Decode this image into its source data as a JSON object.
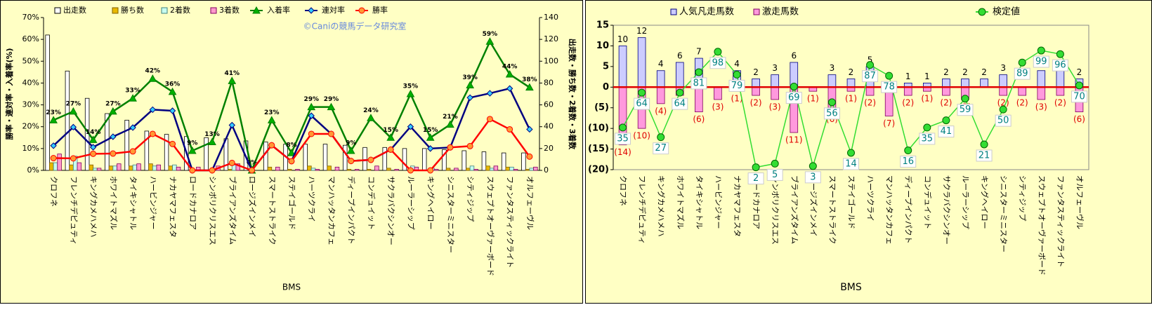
{
  "chart_data": [
    {
      "type": "combo",
      "title": "©Caniの競馬データ研究室",
      "xlabel": "BMS",
      "ylabel": "勝率・連対率・入着率(%)",
      "y2label": "出走数・勝ち数・2着数・3着数",
      "categories": [
        "クロフネ",
        "フレンチデピュティ",
        "キングカメハメハ",
        "ホワイトマズル",
        "タイキシャトル",
        "ハービンジャー",
        "ナカヤマフェスタ",
        "ロードカナロア",
        "シンボリクリスエス",
        "ブライアンズタイム",
        "ロージズインメイ",
        "スマートストライク",
        "ステイゴールド",
        "ハーツクライ",
        "マンハッタンカフェ",
        "ディープインパクト",
        "コンデュイット",
        "サクラバクシンオー",
        "ルーラーシップ",
        "キングヘイロー",
        "シニスターミニスター",
        "シティジップ",
        "スウェプトオーヴァーボード",
        "ファンタスティックライト",
        "オルフェーヴル"
      ],
      "ylim": [
        0,
        70
      ],
      "yticks": [
        {
          "value": 0,
          "label": "0%"
        },
        {
          "value": 10,
          "label": "10%"
        },
        {
          "value": 20,
          "label": "20%"
        },
        {
          "value": 30,
          "label": "30%"
        },
        {
          "value": 40,
          "label": "40%"
        },
        {
          "value": 50,
          "label": "50%"
        },
        {
          "value": 60,
          "label": "60%"
        },
        {
          "value": 70,
          "label": "70%"
        }
      ],
      "y2lim": [
        0,
        140
      ],
      "y2ticks": [
        0,
        20,
        40,
        60,
        80,
        100,
        120,
        140
      ],
      "bar_mode": "group",
      "background": "#ffffc4",
      "series": [
        {
          "name": "出走数",
          "kind": "bar",
          "axis": "y2",
          "color": "#ffffff",
          "stroke": "#000000",
          "values": [
            124,
            91,
            66,
            52,
            46,
            36,
            33,
            31,
            30,
            29,
            27,
            26,
            24,
            24,
            24,
            23,
            21,
            21,
            20,
            20,
            19,
            18,
            17,
            16,
            16
          ]
        },
        {
          "name": "勝ち数",
          "kind": "bar",
          "axis": "y2",
          "color": "#e8b800",
          "stroke": "#806000",
          "values": [
            7,
            5,
            5,
            4,
            4,
            6,
            4,
            0,
            0,
            1,
            0,
            3,
            1,
            4,
            4,
            1,
            1,
            2,
            0,
            0,
            2,
            2,
            4,
            3,
            1
          ]
        },
        {
          "name": "2着数",
          "kind": "bar",
          "axis": "y2",
          "color": "#c8fff0",
          "stroke": "#408080",
          "values": [
            7,
            13,
            2,
            4,
            5,
            4,
            5,
            0,
            0,
            5,
            0,
            0,
            0,
            2,
            0,
            0,
            0,
            0,
            4,
            2,
            0,
            4,
            2,
            3,
            2
          ]
        },
        {
          "name": "3着数",
          "kind": "bar",
          "axis": "y2",
          "color": "#ff99cc",
          "stroke": "#800060",
          "values": [
            15,
            7,
            2,
            6,
            6,
            5,
            3,
            3,
            4,
            6,
            0,
            3,
            1,
            1,
            3,
            1,
            4,
            1,
            3,
            1,
            2,
            1,
            4,
            1,
            3
          ]
        },
        {
          "name": "入着率",
          "kind": "line",
          "axis": "y",
          "color": "#008000",
          "marker": "triangle",
          "marker_fill": "#00b000",
          "labels": true,
          "values": [
            23,
            27,
            14,
            27,
            33,
            42,
            36,
            9,
            13,
            41,
            0,
            23,
            8,
            29,
            29,
            9,
            24,
            15,
            35,
            15,
            21,
            39,
            59,
            44,
            38
          ],
          "value_labels": [
            "23%",
            "27%",
            "14%",
            "27%",
            "33%",
            "42%",
            "36%",
            "9%",
            "13%",
            "41%",
            "0%",
            "23%",
            "8%",
            "29%",
            "29%",
            "9%",
            "24%",
            "15%",
            "35%",
            "15%",
            "21%",
            "39%",
            "59%",
            "44%",
            "38%"
          ]
        },
        {
          "name": "連対率",
          "kind": "line",
          "axis": "y",
          "color": "#000080",
          "marker": "diamond",
          "marker_fill": "#33ccff",
          "values": [
            11.3,
            19.8,
            10.6,
            15.4,
            19.6,
            27.8,
            27.3,
            0,
            0,
            20.7,
            0,
            11.5,
            4.2,
            25,
            16.7,
            4.3,
            4.8,
            9.5,
            20,
            10,
            10.5,
            33.3,
            35.3,
            37.5,
            18.8
          ]
        },
        {
          "name": "勝率",
          "kind": "line",
          "axis": "y",
          "color": "#ff0000",
          "marker": "circle",
          "marker_fill": "#ff9933",
          "values": [
            5.6,
            5.5,
            7.6,
            7.7,
            8.7,
            16.7,
            12.1,
            0,
            0,
            3.4,
            0,
            11.5,
            4.2,
            16.7,
            16.7,
            4.3,
            4.8,
            9.5,
            0,
            0,
            10.5,
            11.1,
            23.5,
            18.8,
            6.3
          ]
        }
      ]
    },
    {
      "type": "combo",
      "xlabel": "BMS",
      "categories": [
        "クロフネ",
        "フレンチデピュティ",
        "キングカメハメハ",
        "ホワイトマズル",
        "タイキシャトル",
        "ハービンジャー",
        "ナカヤマフェスタ",
        "ロードカナロア",
        "シンボリクリスエス",
        "ブライアンズタイム",
        "ロージズインメイ",
        "スマートストライク",
        "ステイゴールド",
        "ハーツクライ",
        "マンハッタンカフェ",
        "ディープインパクト",
        "コンデュイット",
        "サクラバクシンオー",
        "ルーラーシップ",
        "キングヘイロー",
        "シニスターミニスター",
        "シティジップ",
        "スウェプトオーヴァーボード",
        "ファンタスティックライト",
        "オルフェーヴル"
      ],
      "ylim": [
        -20,
        15
      ],
      "yticks": [
        15,
        10,
        5,
        0,
        {
          "value": -5,
          "label": "(5)"
        },
        {
          "value": -10,
          "label": "(10)"
        },
        {
          "value": -15,
          "label": "(15)"
        },
        {
          "value": -20,
          "label": "(20)"
        }
      ],
      "y2lim": [
        0,
        120
      ],
      "bar_mode": "overlap",
      "zero_line_color": "#e00000",
      "background": "#ffffc4",
      "series": [
        {
          "name": "人気凡走馬数",
          "kind": "bar",
          "axis": "y",
          "color": "#ccccff",
          "stroke": "#000080",
          "labels": true,
          "label_color": "#000000",
          "values": [
            10,
            12,
            4,
            6,
            7,
            null,
            4,
            2,
            3,
            6,
            null,
            3,
            2,
            5,
            null,
            1,
            1,
            2,
            2,
            2,
            3,
            null,
            4,
            4,
            2
          ]
        },
        {
          "name": "激走馬数",
          "kind": "bar",
          "axis": "y",
          "color": "#ff99dd",
          "stroke": "#800060",
          "labels": true,
          "label_color": "#e00000",
          "values": [
            -14,
            -10,
            -4,
            -2,
            -6,
            -3,
            -1,
            -2,
            -3,
            -11,
            -1,
            -6,
            -1,
            -2,
            -7,
            -2,
            -1,
            -2,
            -3,
            null,
            -2,
            -2,
            -3,
            -2,
            -6
          ],
          "value_labels": [
            "(14)",
            "(10)",
            "(4)",
            "(2)",
            "(6)",
            "(3)",
            "(1)",
            "(2)",
            "(3)",
            "(11)",
            "(1)",
            "(6)",
            "(1)",
            "(2)",
            "(7)",
            "(2)",
            "(1)",
            "(2)",
            "(3)",
            null,
            "(2)",
            "(2)",
            "(3)",
            "(2)",
            "(6)"
          ]
        },
        {
          "name": "検定値",
          "kind": "line",
          "axis": "y2",
          "color": "#33dd33",
          "marker": "circle",
          "marker_fill": "#33dd33",
          "labels": true,
          "label_box": true,
          "label_color": "#008080",
          "values": [
            35,
            64,
            27,
            64,
            81,
            98,
            79,
            2,
            5,
            69,
            3,
            56,
            14,
            87,
            78,
            16,
            35,
            41,
            59,
            21,
            50,
            89,
            99,
            96,
            70
          ]
        }
      ]
    }
  ]
}
